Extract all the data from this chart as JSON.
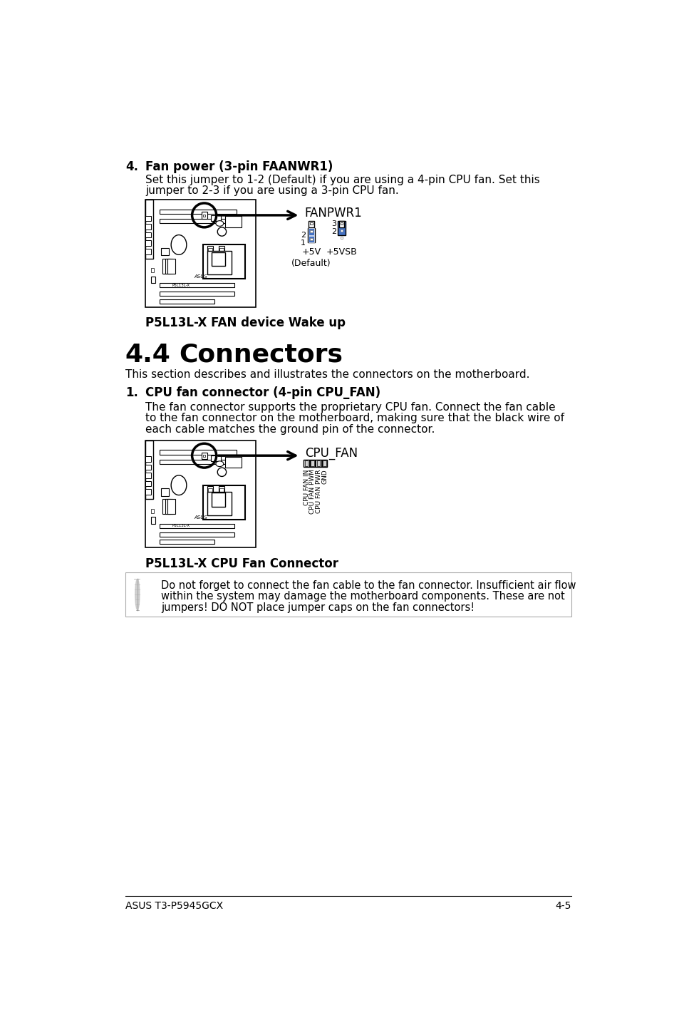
{
  "bg_color": "#ffffff",
  "text_color": "#000000",
  "section4_heading": "4.",
  "section4_title": "Fan power (3-pin FAANWR1)",
  "section4_body1": "Set this jumper to 1-2 (Default) if you are using a 4-pin CPU fan. Set this",
  "section4_body2": "jumper to 2-3 if you are using a 3-pin CPU fan.",
  "diagram1_label": "FANPWR1",
  "diagram1_plus5v": "+5V\n(Default)",
  "diagram1_plus5vsb": "+5VSB",
  "diagram1_caption": "P5L13L-X FAN device Wake up",
  "section44_number": "4.4",
  "section44_title": "Connectors",
  "section44_intro": "This section describes and illustrates the connectors on the motherboard.",
  "section1_heading": "1.",
  "section1_title": "CPU fan connector (4-pin CPU_FAN)",
  "section1_body1": "The fan connector supports the proprietary CPU fan. Connect the fan cable",
  "section1_body2": "to the fan connector on the motherboard, making sure that the black wire of",
  "section1_body3": "each cable matches the ground pin of the connector.",
  "diagram2_label": "CPU_FAN",
  "diagram2_pins": "CPU FAN IN\nCPU FAN PWM\nCPU FAN PWR\nGND",
  "diagram2_caption": "P5L13L-X CPU Fan Connector",
  "note_text": "Do not forget to connect the fan cable to the fan connector. Insufficient air flow\nwithin the system may damage the motherboard components. These are not\njumpers! DO NOT place jumper caps on the fan connectors!",
  "footer_left": "ASUS T3-P5945GCX",
  "footer_right": "4-5",
  "jumper_blue": "#4472c4",
  "line_color": "#aaaaaa"
}
